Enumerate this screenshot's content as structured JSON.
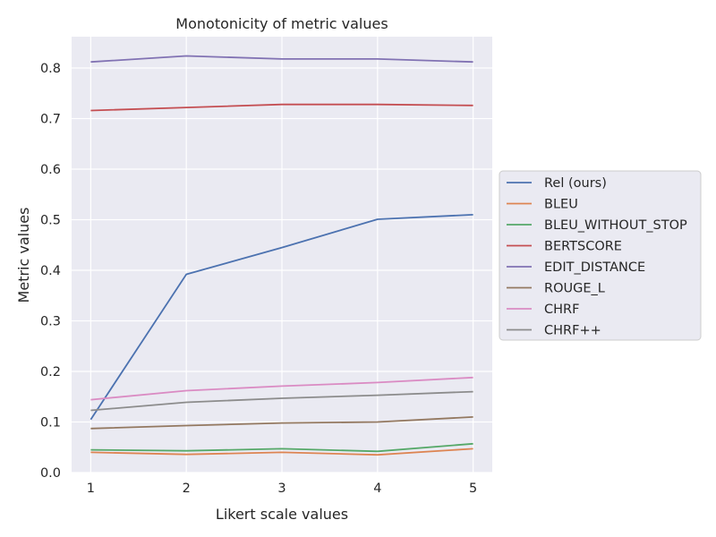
{
  "chart_data": {
    "type": "line",
    "title": "Monotonicity of metric values",
    "xlabel": "Likert scale values",
    "ylabel": "Metric values",
    "x": [
      1,
      2,
      3,
      4,
      5
    ],
    "x_ticks": [
      "1",
      "2",
      "3",
      "4",
      "5"
    ],
    "y_ticks": [
      "0.0",
      "0.1",
      "0.2",
      "0.3",
      "0.4",
      "0.5",
      "0.6",
      "0.7",
      "0.8"
    ],
    "xlim": [
      0.8,
      5.2
    ],
    "ylim": [
      0.0,
      0.862
    ],
    "grid": true,
    "legend_position": "right, outside plot",
    "series": [
      {
        "name": "Rel (ours)",
        "color": "#4c72b0",
        "values": [
          0.105,
          0.392,
          0.445,
          0.501,
          0.51
        ]
      },
      {
        "name": "BLEU",
        "color": "#dd8452",
        "values": [
          0.04,
          0.036,
          0.04,
          0.035,
          0.047
        ]
      },
      {
        "name": "BLEU_WITHOUT_STOP",
        "color": "#55a868",
        "values": [
          0.045,
          0.043,
          0.047,
          0.042,
          0.057
        ]
      },
      {
        "name": "BERTSCORE",
        "color": "#c44e52",
        "values": [
          0.716,
          0.722,
          0.728,
          0.728,
          0.726
        ]
      },
      {
        "name": "EDIT_DISTANCE",
        "color": "#8172b3",
        "values": [
          0.812,
          0.824,
          0.818,
          0.818,
          0.812
        ]
      },
      {
        "name": "ROUGE_L",
        "color": "#937860",
        "values": [
          0.087,
          0.093,
          0.098,
          0.1,
          0.11
        ]
      },
      {
        "name": "CHRF",
        "color": "#da8bc3",
        "values": [
          0.144,
          0.162,
          0.171,
          0.178,
          0.188
        ]
      },
      {
        "name": "CHRF++",
        "color": "#8c8c8c",
        "values": [
          0.123,
          0.139,
          0.147,
          0.153,
          0.16
        ]
      }
    ]
  }
}
